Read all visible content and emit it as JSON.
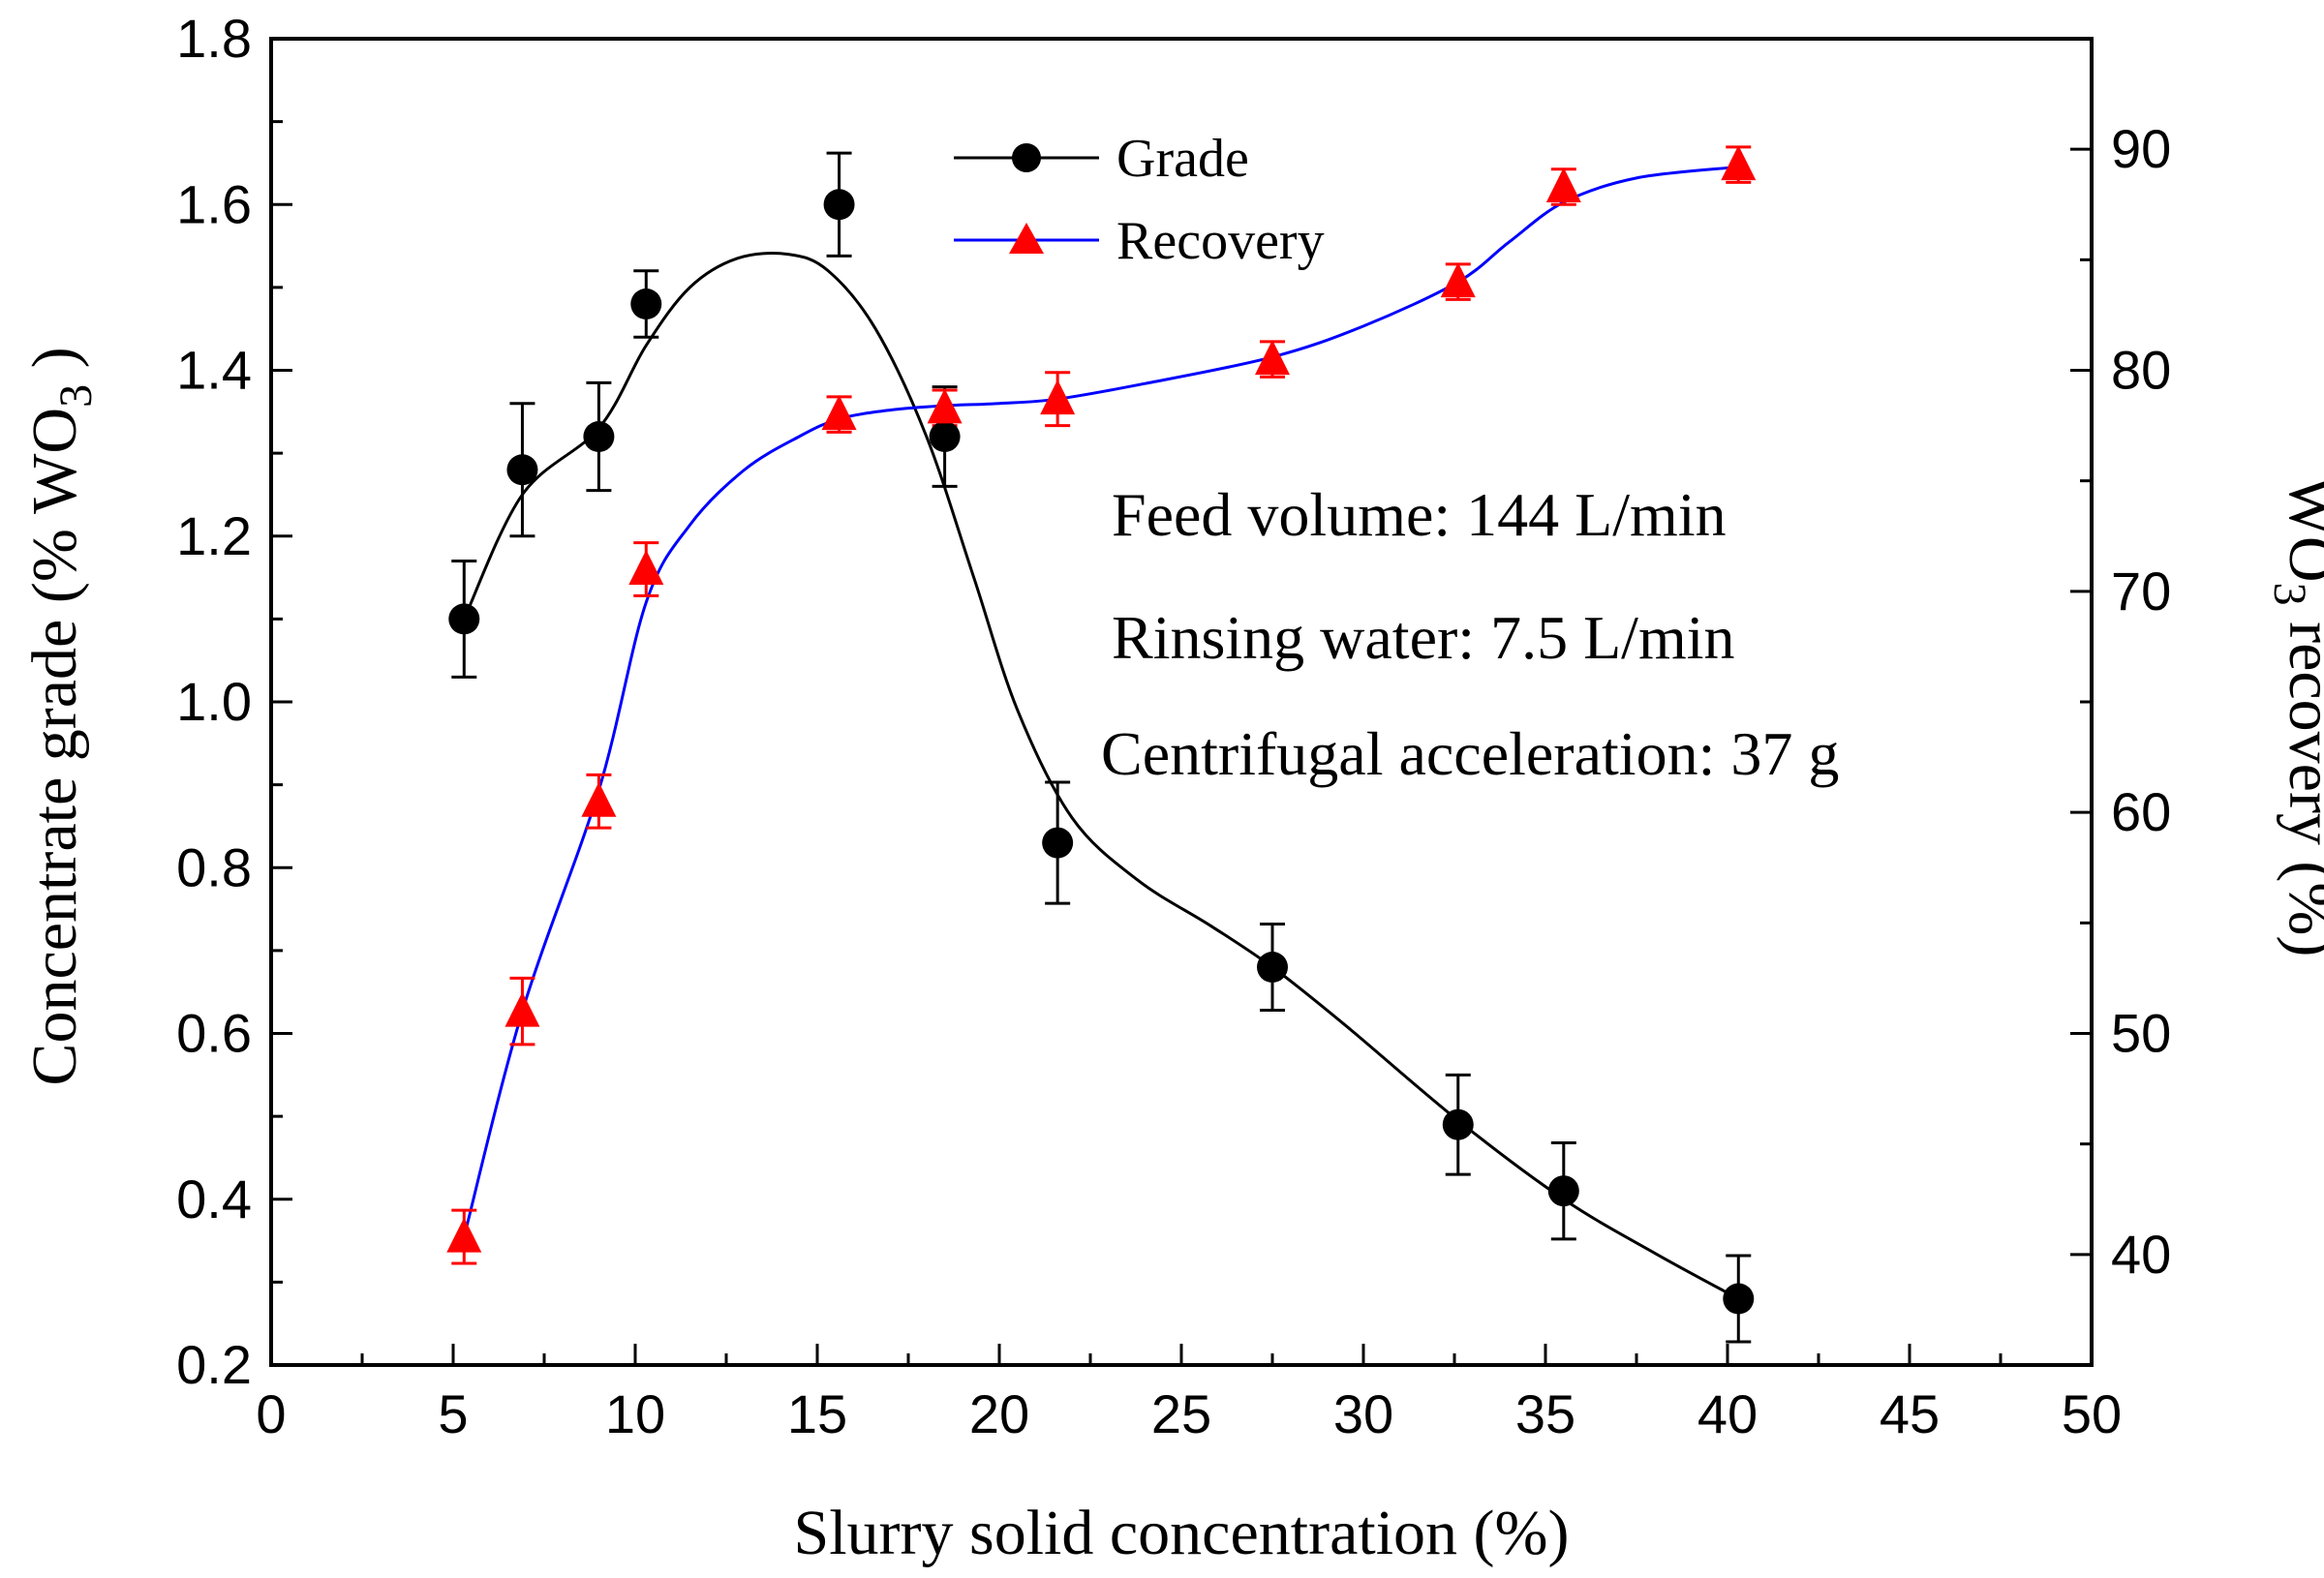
{
  "chart_data": {
    "type": "line",
    "title": "",
    "xlabel": "Slurry solid concentration (%)",
    "ylabel": {
      "prefix": "Concentrate grade (% ",
      "chem": "WO",
      "sub": "3",
      "suffix": " )"
    },
    "y2label": {
      "chem": "WO",
      "sub": "3",
      "suffix": " recovery (%)"
    },
    "xlim": [
      0,
      50
    ],
    "ylim": [
      0.2,
      1.8
    ],
    "y2lim": [
      35,
      95
    ],
    "xticks": [
      "0",
      "5",
      "10",
      "15",
      "20",
      "25",
      "30",
      "35",
      "40",
      "45",
      "50"
    ],
    "yticks": [
      "0.2",
      "0.4",
      "0.6",
      "0.8",
      "1.0",
      "1.2",
      "1.4",
      "1.6",
      "1.8"
    ],
    "y2ticks": [
      "40",
      "50",
      "60",
      "70",
      "80",
      "90"
    ],
    "grid": false,
    "legend_position": "top-center",
    "series": [
      {
        "name": "Grade",
        "axis": "left",
        "color": "#000000",
        "marker": "circle",
        "x": [
          5.3,
          6.9,
          9.0,
          10.3,
          15.6,
          18.5,
          21.6,
          27.5,
          32.6,
          35.5,
          40.3
        ],
        "values": [
          1.1,
          1.28,
          1.32,
          1.48,
          1.6,
          1.32,
          0.83,
          0.68,
          0.49,
          0.41,
          0.28
        ],
        "errors": [
          0.07,
          0.08,
          0.065,
          0.04,
          0.062,
          0.06,
          0.073,
          0.052,
          0.06,
          0.058,
          0.052
        ],
        "curve_x": [
          5.3,
          6.9,
          9.0,
          10.3,
          11.5,
          12.8,
          14.2,
          15.3,
          16.6,
          18.0,
          19.3,
          20.5,
          22.0,
          23.8,
          25.8,
          27.5,
          29.5,
          32.6,
          35.5,
          38.0,
          40.3
        ],
        "curve_y": [
          1.1,
          1.25,
          1.33,
          1.43,
          1.5,
          1.535,
          1.54,
          1.52,
          1.45,
          1.32,
          1.15,
          0.99,
          0.86,
          0.785,
          0.73,
          0.68,
          0.61,
          0.495,
          0.4,
          0.335,
          0.28
        ]
      },
      {
        "name": "Recovery",
        "axis": "right",
        "color": "#0000ff",
        "marker_color": "#ff0000",
        "marker": "triangle",
        "x": [
          5.3,
          6.9,
          9.0,
          10.3,
          15.6,
          18.5,
          21.6,
          27.5,
          32.6,
          35.5,
          40.3
        ],
        "values": [
          40.8,
          51.0,
          60.5,
          71.0,
          78.0,
          78.3,
          78.7,
          80.5,
          84.0,
          88.3,
          89.3
        ],
        "errors": [
          1.2,
          1.5,
          1.2,
          1.2,
          0.8,
          0.8,
          1.2,
          0.8,
          0.8,
          0.8,
          0.8
        ],
        "curve_x": [
          5.3,
          6.9,
          9.0,
          10.3,
          11.5,
          13.0,
          14.5,
          15.6,
          17.0,
          18.5,
          20.0,
          21.6,
          24.0,
          27.5,
          30.0,
          32.6,
          34.0,
          35.5,
          37.5,
          40.3
        ],
        "curve_y": [
          40.8,
          51.0,
          61.0,
          69.5,
          73.0,
          75.5,
          77.0,
          77.8,
          78.2,
          78.4,
          78.5,
          78.7,
          79.4,
          80.6,
          82.0,
          84.0,
          85.8,
          87.6,
          88.7,
          89.2
        ]
      }
    ],
    "annotations": [
      "Feed volume: 144 L/min",
      "Rinsing water: 7.5 L/min",
      "Centrifugal acceleration: 37 g"
    ]
  }
}
